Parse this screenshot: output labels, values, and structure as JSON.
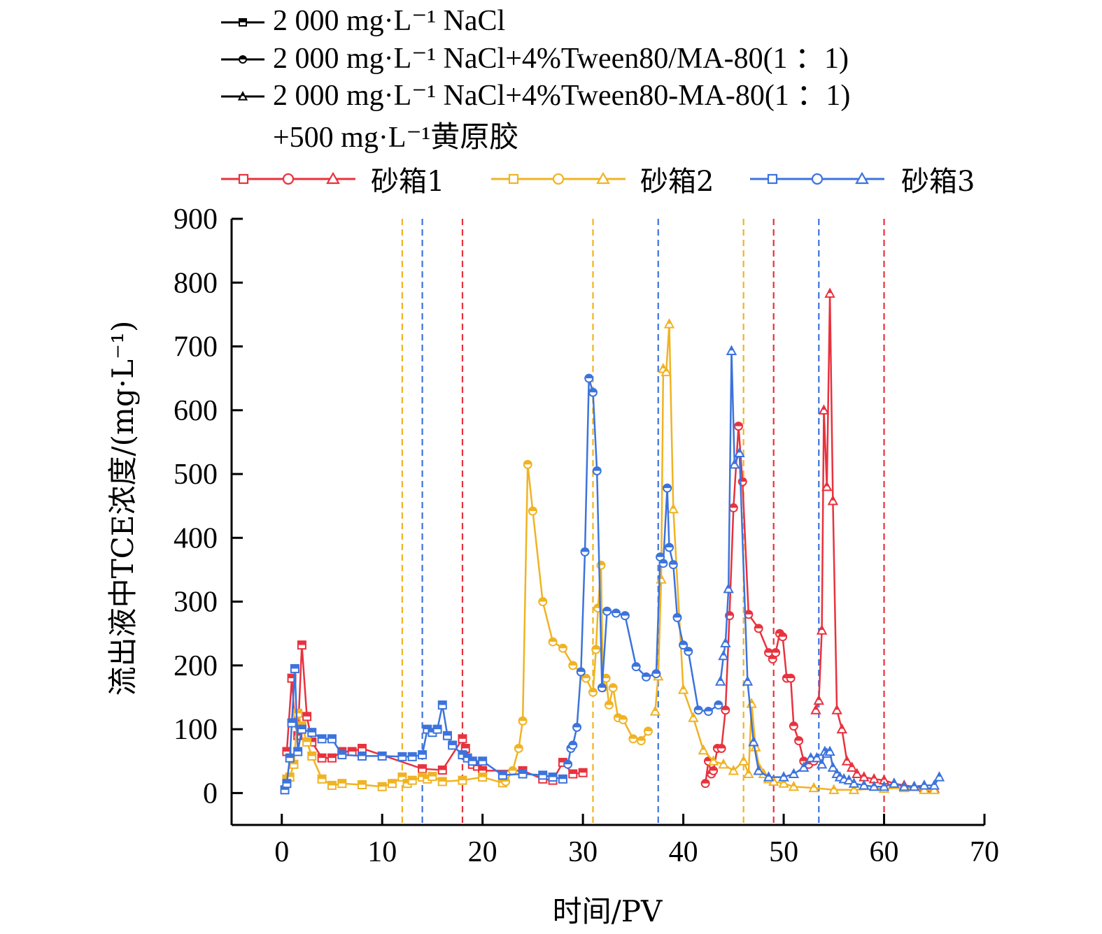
{
  "chart_data": {
    "type": "line",
    "xlabel": "时间/PV",
    "ylabel": "流出液中TCE浓度/(mg·L⁻¹)",
    "xlim": [
      -5,
      70
    ],
    "ylim": [
      -50,
      900
    ],
    "xticks": [
      0,
      10,
      20,
      30,
      40,
      50,
      60,
      70
    ],
    "yticks": [
      0,
      100,
      200,
      300,
      400,
      500,
      600,
      700,
      800,
      900
    ],
    "grid": false,
    "legend": {
      "placement": "top",
      "stages": [
        {
          "label": "2 000 mg·L⁻¹ NaCl",
          "marker": "square"
        },
        {
          "label": "2 000 mg·L⁻¹ NaCl+4%Tween80/MA-80(1 ：1)",
          "marker": "circle"
        },
        {
          "label": "2 000 mg·L⁻¹ NaCl+4%Tween80-MA-80(1 ：1)",
          "label_line2": "+500 mg·L⁻¹黄原胶",
          "marker": "triangle"
        }
      ],
      "boxes": [
        {
          "label": "砂箱1",
          "color": "#e8323e"
        },
        {
          "label": "砂箱2",
          "color": "#f0b323"
        },
        {
          "label": "砂箱3",
          "color": "#3c73dc"
        }
      ]
    },
    "stage_boundaries": [
      {
        "box": "砂箱2",
        "color": "#f0b323",
        "x": [
          12,
          31,
          46
        ]
      },
      {
        "box": "砂箱3",
        "color": "#3c73dc",
        "x": [
          14,
          37.5,
          53.5
        ]
      },
      {
        "box": "砂箱1",
        "color": "#e8323e",
        "x": [
          18,
          49,
          60
        ]
      }
    ],
    "series": [
      {
        "box": "砂箱1",
        "stage": 1,
        "color": "#e8323e",
        "marker": "square",
        "points": [
          [
            0.5,
            65
          ],
          [
            1,
            180
          ],
          [
            1.3,
            110
          ],
          [
            1.6,
            90
          ],
          [
            2,
            232
          ],
          [
            2.5,
            120
          ],
          [
            3,
            80
          ],
          [
            4,
            55
          ],
          [
            5,
            55
          ],
          [
            6,
            65
          ],
          [
            7,
            65
          ],
          [
            8,
            70
          ],
          [
            14,
            38
          ],
          [
            16,
            36
          ],
          [
            18,
            85
          ],
          [
            18.3,
            70
          ],
          [
            19,
            45
          ],
          [
            19.5,
            42
          ],
          [
            20,
            35
          ],
          [
            24,
            35
          ],
          [
            26,
            22
          ],
          [
            27,
            20
          ],
          [
            28,
            48
          ],
          [
            29,
            30
          ],
          [
            30,
            32
          ]
        ]
      },
      {
        "box": "砂箱1",
        "stage": 2,
        "color": "#e8323e",
        "marker": "circle",
        "points": [
          [
            42.2,
            15
          ],
          [
            42.5,
            50
          ],
          [
            42.8,
            30
          ],
          [
            43,
            35
          ],
          [
            43.4,
            70
          ],
          [
            43.8,
            70
          ],
          [
            44.2,
            130
          ],
          [
            44.6,
            278
          ],
          [
            45,
            447
          ],
          [
            45.5,
            575
          ],
          [
            45.9,
            488
          ],
          [
            46.5,
            280
          ],
          [
            47.5,
            258
          ],
          [
            48.5,
            220
          ],
          [
            48.9,
            210
          ],
          [
            49.2,
            220
          ],
          [
            49.6,
            250
          ],
          [
            49.9,
            245
          ],
          [
            50.3,
            180
          ],
          [
            50.7,
            180
          ],
          [
            51,
            105
          ],
          [
            51.5,
            82
          ],
          [
            52,
            50
          ],
          [
            52.5,
            45
          ],
          [
            53,
            50
          ]
        ]
      },
      {
        "box": "砂箱1",
        "stage": 3,
        "color": "#e8323e",
        "marker": "triangle",
        "points": [
          [
            53.2,
            130
          ],
          [
            53.5,
            145
          ],
          [
            53.8,
            255
          ],
          [
            54,
            600
          ],
          [
            54.3,
            480
          ],
          [
            54.6,
            783
          ],
          [
            54.9,
            458
          ],
          [
            55.3,
            130
          ],
          [
            55.8,
            100
          ],
          [
            56.3,
            50
          ],
          [
            56.8,
            40
          ],
          [
            57.3,
            30
          ],
          [
            58,
            25
          ],
          [
            59,
            22
          ],
          [
            60,
            20
          ],
          [
            61,
            15
          ],
          [
            62,
            12
          ],
          [
            63,
            10
          ],
          [
            64,
            8
          ],
          [
            65,
            7
          ]
        ]
      },
      {
        "box": "砂箱2",
        "stage": 1,
        "color": "#f0b323",
        "marker": "square",
        "points": [
          [
            0.5,
            22
          ],
          [
            0.8,
            25
          ],
          [
            1.2,
            45
          ],
          [
            1.6,
            125
          ],
          [
            2,
            105
          ],
          [
            2.5,
            80
          ],
          [
            3,
            58
          ],
          [
            4,
            22
          ],
          [
            5,
            12
          ],
          [
            6,
            15
          ],
          [
            8,
            13
          ],
          [
            10,
            10
          ],
          [
            11,
            15
          ],
          [
            12,
            25
          ],
          [
            12.5,
            15
          ],
          [
            13,
            20
          ],
          [
            14,
            25
          ],
          [
            14.5,
            22
          ],
          [
            15,
            26
          ],
          [
            16,
            18
          ],
          [
            18,
            20
          ],
          [
            20,
            25
          ],
          [
            22,
            16
          ]
        ]
      },
      {
        "box": "砂箱2",
        "stage": 2,
        "color": "#f0b323",
        "marker": "circle",
        "points": [
          [
            22.3,
            18
          ],
          [
            23,
            35
          ],
          [
            23.6,
            70
          ],
          [
            24,
            113
          ],
          [
            24.5,
            515
          ],
          [
            25,
            442
          ],
          [
            26,
            300
          ],
          [
            27,
            237
          ],
          [
            28,
            227
          ],
          [
            29,
            200
          ],
          [
            29.8,
            190
          ],
          [
            30.3,
            180
          ],
          [
            31,
            158
          ],
          [
            31.3,
            225
          ],
          [
            31.5,
            290
          ],
          [
            31.8,
            357
          ],
          [
            32,
            165
          ],
          [
            32.3,
            180
          ],
          [
            32.6,
            138
          ],
          [
            33,
            165
          ],
          [
            33.5,
            118
          ],
          [
            34,
            115
          ],
          [
            35,
            85
          ],
          [
            35.8,
            82
          ],
          [
            36.5,
            97
          ]
        ]
      },
      {
        "box": "砂箱2",
        "stage": 3,
        "color": "#f0b323",
        "marker": "triangle",
        "points": [
          [
            37.2,
            128
          ],
          [
            37.5,
            183
          ],
          [
            37.8,
            335
          ],
          [
            38,
            665
          ],
          [
            38.3,
            660
          ],
          [
            38.6,
            735
          ],
          [
            39,
            445
          ],
          [
            40,
            162
          ],
          [
            41,
            118
          ],
          [
            42,
            67
          ],
          [
            43,
            50
          ],
          [
            44,
            45
          ],
          [
            45,
            35
          ],
          [
            46,
            50
          ],
          [
            46.5,
            30
          ],
          [
            46.8,
            140
          ],
          [
            47.2,
            72
          ],
          [
            47.6,
            38
          ],
          [
            48,
            30
          ],
          [
            48.5,
            22
          ],
          [
            49,
            18
          ],
          [
            50,
            15
          ],
          [
            51,
            10
          ],
          [
            53,
            8
          ],
          [
            55,
            5
          ],
          [
            57,
            5
          ],
          [
            60,
            7
          ],
          [
            62,
            8
          ],
          [
            64,
            5
          ],
          [
            65,
            5
          ]
        ]
      },
      {
        "box": "砂箱3",
        "stage": 1,
        "color": "#3c73dc",
        "marker": "square",
        "points": [
          [
            0.3,
            5
          ],
          [
            0.5,
            15
          ],
          [
            0.8,
            55
          ],
          [
            1,
            110
          ],
          [
            1.3,
            195
          ],
          [
            1.6,
            65
          ],
          [
            2,
            100
          ],
          [
            3,
            95
          ],
          [
            4,
            85
          ],
          [
            5,
            85
          ],
          [
            6,
            60
          ],
          [
            8,
            58
          ],
          [
            10,
            58
          ],
          [
            12,
            57
          ],
          [
            13,
            57
          ],
          [
            14,
            60
          ],
          [
            14.5,
            100
          ],
          [
            15,
            95
          ],
          [
            15.5,
            100
          ],
          [
            16,
            138
          ],
          [
            16.5,
            90
          ],
          [
            17,
            75
          ],
          [
            18,
            60
          ],
          [
            18.5,
            55
          ],
          [
            19,
            50
          ],
          [
            20,
            50
          ],
          [
            22,
            28
          ],
          [
            24,
            30
          ],
          [
            26,
            28
          ],
          [
            27,
            25
          ],
          [
            28,
            22
          ]
        ]
      },
      {
        "box": "砂箱3",
        "stage": 2,
        "color": "#3c73dc",
        "marker": "circle",
        "points": [
          [
            28.5,
            45
          ],
          [
            28.8,
            70
          ],
          [
            29,
            75
          ],
          [
            29.4,
            103
          ],
          [
            29.8,
            190
          ],
          [
            30.2,
            378
          ],
          [
            30.6,
            650
          ],
          [
            31,
            628
          ],
          [
            31.4,
            505
          ],
          [
            31.9,
            165
          ],
          [
            32.4,
            285
          ],
          [
            33.3,
            282
          ],
          [
            34.2,
            278
          ],
          [
            35.3,
            198
          ],
          [
            36.3,
            182
          ],
          [
            37.3,
            187
          ],
          [
            37.7,
            370
          ],
          [
            38,
            360
          ],
          [
            38.4,
            478
          ],
          [
            38.6,
            385
          ],
          [
            39,
            358
          ],
          [
            39.4,
            275
          ],
          [
            40,
            232
          ],
          [
            40.5,
            222
          ],
          [
            41.5,
            130
          ],
          [
            42.5,
            128
          ],
          [
            43.5,
            138
          ]
        ]
      },
      {
        "box": "砂箱3",
        "stage": 3,
        "color": "#3c73dc",
        "marker": "triangle",
        "points": [
          [
            43.7,
            175
          ],
          [
            44,
            215
          ],
          [
            44.2,
            235
          ],
          [
            44.5,
            320
          ],
          [
            44.8,
            693
          ],
          [
            45.1,
            515
          ],
          [
            45.6,
            533
          ],
          [
            46.4,
            175
          ],
          [
            47,
            80
          ],
          [
            47.5,
            35
          ],
          [
            48.5,
            25
          ],
          [
            50,
            25
          ],
          [
            51,
            30
          ],
          [
            52,
            40
          ],
          [
            52.7,
            55
          ],
          [
            53.3,
            55
          ],
          [
            53.8,
            45
          ],
          [
            54.1,
            65
          ],
          [
            54.3,
            62
          ],
          [
            54.6,
            65
          ],
          [
            54.9,
            40
          ],
          [
            55.3,
            30
          ],
          [
            55.6,
            25
          ],
          [
            56,
            22
          ],
          [
            56.5,
            20
          ],
          [
            57,
            15
          ],
          [
            58,
            12
          ],
          [
            59,
            10
          ],
          [
            60,
            10
          ],
          [
            61,
            15
          ],
          [
            62,
            10
          ],
          [
            63,
            10
          ],
          [
            64,
            12
          ],
          [
            65,
            12
          ],
          [
            65.5,
            25
          ]
        ]
      }
    ]
  }
}
